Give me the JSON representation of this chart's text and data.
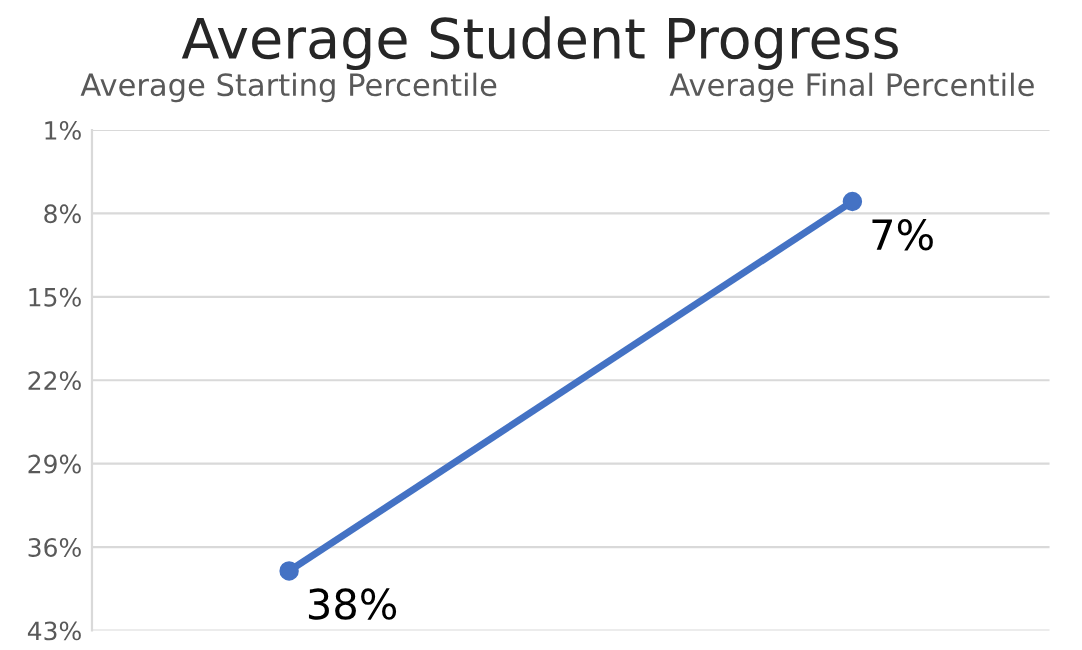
{
  "chart_data": {
    "type": "line",
    "title": "Average Student Progress",
    "categories": [
      "Average Starting Percentile",
      "Average Final Percentile"
    ],
    "series": [
      {
        "color": "#4472c4",
        "values": [
          38,
          7
        ],
        "value_labels": [
          "38%",
          "7%"
        ]
      }
    ],
    "ylim": [
      43,
      1
    ],
    "yticks": [
      {
        "value": 1,
        "label": "1%"
      },
      {
        "value": 8,
        "label": "8%"
      },
      {
        "value": 15,
        "label": "15%"
      },
      {
        "value": 22,
        "label": "22%"
      },
      {
        "value": 29,
        "label": "29%"
      },
      {
        "value": 36,
        "label": "36%"
      },
      {
        "value": 43,
        "label": "43%"
      }
    ],
    "grid": "y",
    "marker": "circle",
    "line_style": "solid"
  }
}
